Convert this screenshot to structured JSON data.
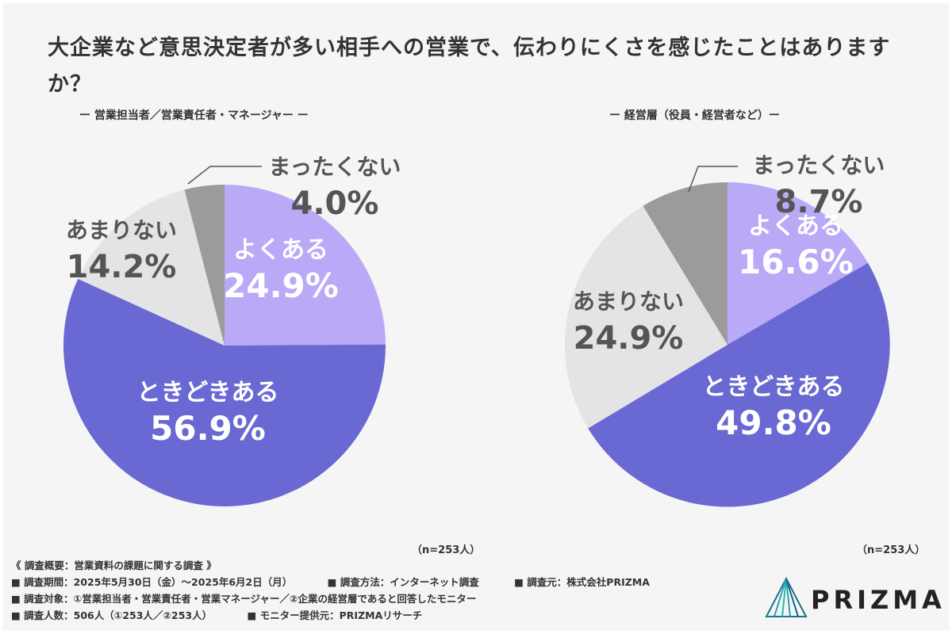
{
  "title": "大企業など意思決定者が多い相手への営業で、伝わりにくさを感じたことはありますか？",
  "chart_data": [
    {
      "type": "pie",
      "title": "ー 営業担当者／営業責任者・マネージャー ー",
      "n_label": "（n=253人）",
      "slices": [
        {
          "label": "よくある",
          "value": 24.9,
          "value_text": "24.9%",
          "color": "#b9a9f6"
        },
        {
          "label": "ときどきある",
          "value": 56.9,
          "value_text": "56.9%",
          "color": "#6a68d2"
        },
        {
          "label": "あまりない",
          "value": 14.2,
          "value_text": "14.2%",
          "color": "#e4e4e6"
        },
        {
          "label": "まったくない",
          "value": 4.0,
          "value_text": "4.0%",
          "color": "#9b9b9b"
        }
      ]
    },
    {
      "type": "pie",
      "title": "ー 経営層（役員・経営者など）ー",
      "n_label": "（n=253人）",
      "slices": [
        {
          "label": "よくある",
          "value": 16.6,
          "value_text": "16.6%",
          "color": "#b9a9f6"
        },
        {
          "label": "ときどきある",
          "value": 49.8,
          "value_text": "49.8%",
          "color": "#6a68d2"
        },
        {
          "label": "あまりない",
          "value": 24.9,
          "value_text": "24.9%",
          "color": "#e4e4e6"
        },
        {
          "label": "まったくない",
          "value": 8.7,
          "value_text": "8.7%",
          "color": "#9b9b9b"
        }
      ]
    }
  ],
  "footer": {
    "heading": "《 調査概要：営業資料の課題に関する調査 》",
    "period": "■ 調査期間：2025年5月30日（金）〜2025年6月2日（月）",
    "method": "■ 調査方法：インターネット調査",
    "source": "■ 調査元：株式会社PRIZMA",
    "target": "■ 調査対象：①営業担当者・営業責任者・営業マネージャー／②企業の経営層であると回答したモニター",
    "count": "■ 調査人数：506人（①253人／②253人）",
    "provider": "■ モニター提供元：PRIZMAリサーチ"
  },
  "logo": {
    "text": "PRIZMA"
  }
}
